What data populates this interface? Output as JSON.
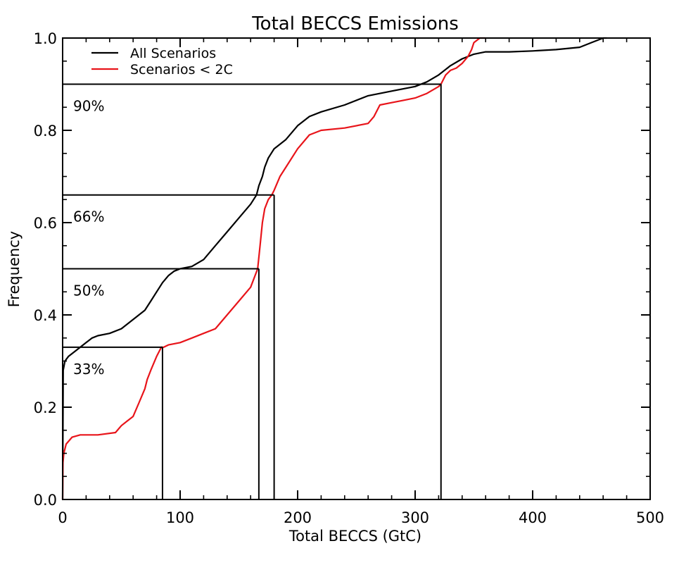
{
  "chart_data": {
    "type": "line",
    "title": "Total BECCS Emissions",
    "xlabel": "Total BECCS (GtC)",
    "ylabel": "Frequency",
    "xlim": [
      0,
      500
    ],
    "ylim": [
      0,
      1
    ],
    "x_ticks": [
      0,
      100,
      200,
      300,
      400,
      500
    ],
    "x_tick_labels": [
      "0",
      "100",
      "200",
      "300",
      "400",
      "500"
    ],
    "y_ticks": [
      0,
      0.2,
      0.4,
      0.6,
      0.8,
      1.0
    ],
    "y_tick_labels": [
      "0.0",
      "0.2",
      "0.4",
      "0.6",
      "0.8",
      "1.0"
    ],
    "grid": false,
    "legend_position": "top-left",
    "series": [
      {
        "name": "All Scenarios",
        "color": "#000000",
        "x": [
          0,
          0.5,
          2,
          5,
          10,
          15,
          20,
          25,
          30,
          40,
          50,
          60,
          70,
          75,
          80,
          85,
          90,
          95,
          100,
          110,
          120,
          130,
          140,
          150,
          160,
          165,
          167,
          170,
          172,
          175,
          180,
          190,
          200,
          210,
          220,
          240,
          260,
          280,
          300,
          310,
          320,
          330,
          340,
          350,
          360,
          380,
          400,
          420,
          440,
          450,
          460,
          463
        ],
        "y": [
          0.0,
          0.28,
          0.3,
          0.31,
          0.32,
          0.33,
          0.34,
          0.35,
          0.355,
          0.36,
          0.37,
          0.39,
          0.41,
          0.43,
          0.45,
          0.47,
          0.485,
          0.495,
          0.5,
          0.505,
          0.52,
          0.55,
          0.58,
          0.61,
          0.64,
          0.66,
          0.68,
          0.7,
          0.72,
          0.74,
          0.76,
          0.78,
          0.81,
          0.83,
          0.84,
          0.855,
          0.875,
          0.885,
          0.895,
          0.905,
          0.92,
          0.94,
          0.955,
          0.965,
          0.97,
          0.97,
          0.972,
          0.975,
          0.98,
          0.99,
          1.0,
          1.0
        ]
      },
      {
        "name": "Scenarios < 2C",
        "color": "#e8141a",
        "x": [
          0,
          0.3,
          1,
          3,
          8,
          15,
          30,
          45,
          50,
          55,
          60,
          65,
          70,
          72,
          75,
          80,
          84,
          86,
          90,
          100,
          110,
          120,
          130,
          140,
          150,
          160,
          166,
          168,
          170,
          172,
          175,
          178,
          180,
          185,
          190,
          200,
          210,
          220,
          240,
          260,
          265,
          270,
          280,
          290,
          300,
          310,
          320,
          322,
          326,
          330,
          335,
          340,
          345,
          348,
          350,
          355,
          360
        ],
        "y": [
          0.0,
          0.08,
          0.1,
          0.12,
          0.135,
          0.14,
          0.14,
          0.145,
          0.16,
          0.17,
          0.18,
          0.21,
          0.24,
          0.26,
          0.28,
          0.31,
          0.33,
          0.33,
          0.335,
          0.34,
          0.35,
          0.36,
          0.37,
          0.4,
          0.43,
          0.46,
          0.5,
          0.55,
          0.6,
          0.63,
          0.65,
          0.66,
          0.67,
          0.7,
          0.72,
          0.76,
          0.79,
          0.8,
          0.805,
          0.815,
          0.83,
          0.855,
          0.86,
          0.865,
          0.87,
          0.88,
          0.895,
          0.9,
          0.92,
          0.93,
          0.935,
          0.945,
          0.96,
          0.975,
          0.99,
          1.0,
          1.0
        ]
      }
    ],
    "threshold_lines": [
      {
        "frequency": 0.33,
        "label": "33%",
        "x_end": 85
      },
      {
        "frequency": 0.5,
        "label": "50%",
        "x_end": 167
      },
      {
        "frequency": 0.66,
        "label": "66%",
        "x_end": 180
      },
      {
        "frequency": 0.9,
        "label": "90%",
        "x_end": 322
      }
    ]
  }
}
